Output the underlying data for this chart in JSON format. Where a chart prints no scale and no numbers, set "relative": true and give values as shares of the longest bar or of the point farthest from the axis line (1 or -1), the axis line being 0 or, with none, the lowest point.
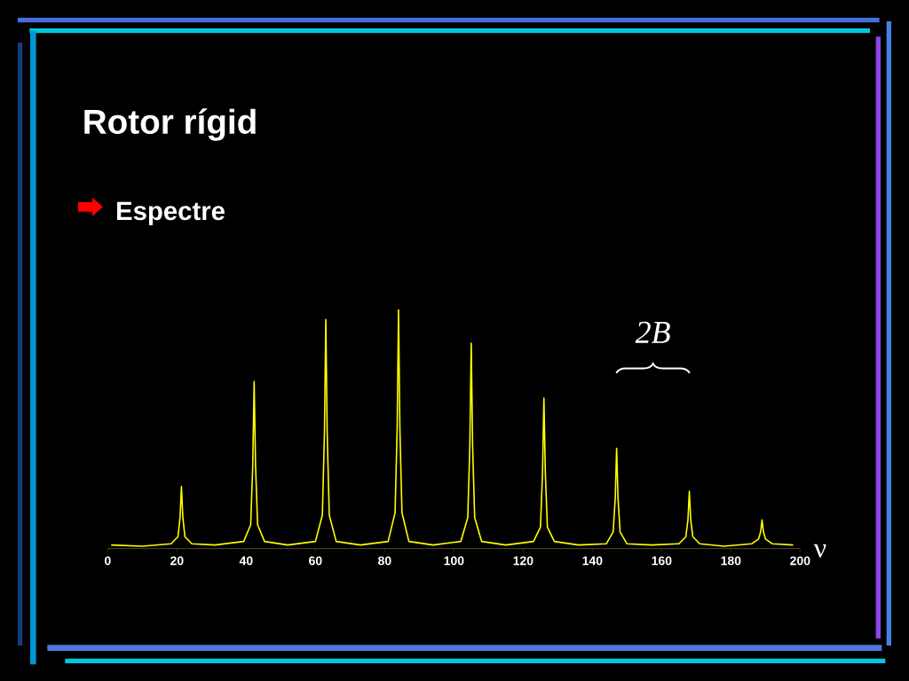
{
  "chart_data": {
    "type": "line",
    "title": "Rotor rígid",
    "subtitle": "Espectre",
    "xlabel": "ν",
    "relative": true,
    "xlim": [
      0,
      200
    ],
    "xticks": [
      0,
      20,
      40,
      60,
      80,
      100,
      120,
      140,
      160,
      180,
      200
    ],
    "annotations": [
      "2B"
    ],
    "series": [
      {
        "color": "#ffff00",
        "x": [
          1,
          10,
          18.3,
          20.3,
          20.9,
          21.3,
          21.7,
          22.3,
          24.3,
          31,
          39.3,
          41.3,
          41.9,
          42.3,
          42.7,
          43.3,
          45.3,
          52,
          60,
          62,
          62.6,
          63,
          63.4,
          64,
          66,
          73,
          81,
          83,
          83.6,
          84,
          84.4,
          85,
          87,
          94,
          102,
          104,
          104.6,
          105,
          105.4,
          106,
          108,
          115,
          123,
          125,
          125.6,
          126,
          126.4,
          127,
          129,
          136,
          144,
          146,
          146.6,
          147,
          147.4,
          148,
          150,
          157,
          165,
          167,
          167.6,
          168,
          168.4,
          169,
          171,
          178,
          186,
          188,
          188.6,
          189,
          189.4,
          190,
          192,
          198
        ],
        "values": [
          0.015,
          0.01,
          0.02,
          0.05,
          0.13,
          0.26,
          0.13,
          0.05,
          0.02,
          0.015,
          0.03,
          0.1,
          0.35,
          0.7,
          0.35,
          0.1,
          0.03,
          0.015,
          0.03,
          0.14,
          0.48,
          0.96,
          0.48,
          0.14,
          0.03,
          0.015,
          0.03,
          0.15,
          0.5,
          1,
          0.5,
          0.15,
          0.03,
          0.015,
          0.03,
          0.13,
          0.43,
          0.86,
          0.43,
          0.13,
          0.03,
          0.015,
          0.03,
          0.09,
          0.32,
          0.63,
          0.32,
          0.09,
          0.03,
          0.015,
          0.02,
          0.07,
          0.21,
          0.42,
          0.21,
          0.07,
          0.02,
          0.015,
          0.02,
          0.05,
          0.12,
          0.24,
          0.12,
          0.05,
          0.02,
          0.01,
          0.02,
          0.04,
          0.07,
          0.12,
          0.07,
          0.04,
          0.02,
          0.015
        ]
      }
    ]
  }
}
